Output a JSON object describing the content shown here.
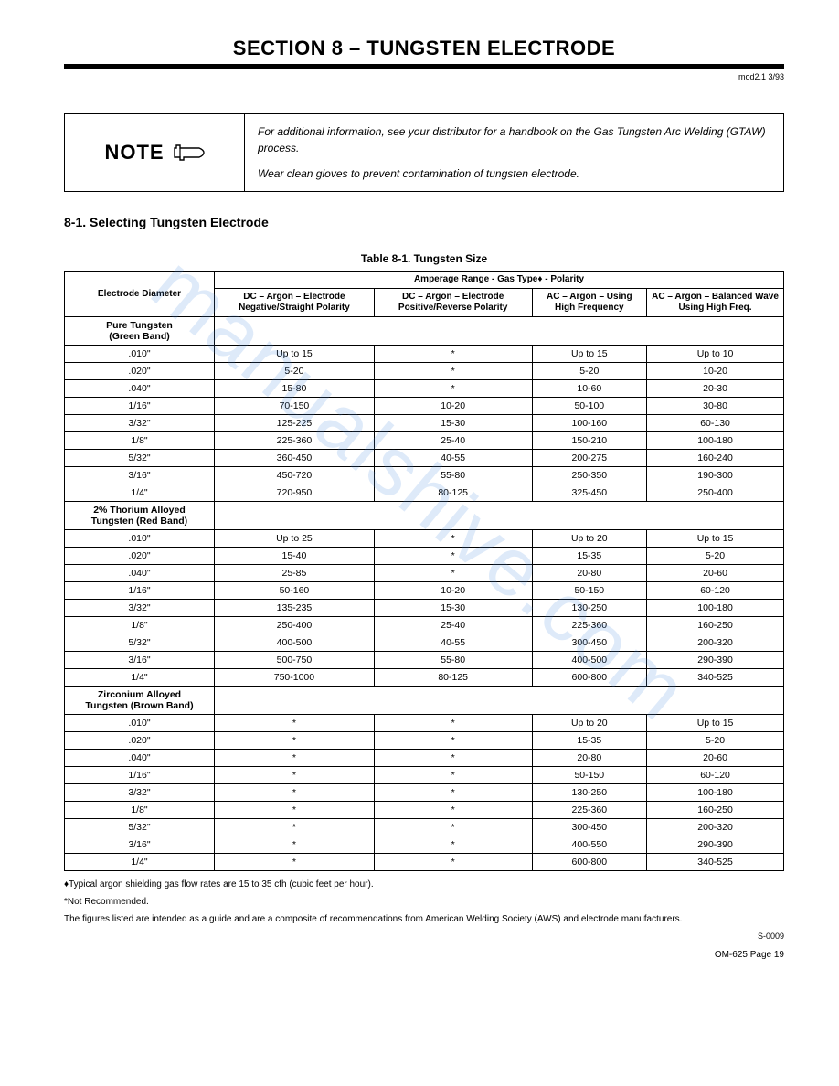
{
  "header": {
    "title": "SECTION 8 – TUNGSTEN ELECTRODE",
    "revision": "mod2.1 3/93"
  },
  "note": {
    "label": "NOTE",
    "line1": "For additional information, see your distributor for a handbook on the Gas Tungsten Arc Welding (GTAW) process.",
    "line2": "Wear clean gloves to prevent contamination of tungsten electrode."
  },
  "subsection": "8-1.   Selecting Tungsten Electrode",
  "table": {
    "caption": "Table 8-1. Tungsten Size",
    "span_header": "Amperage Range - Gas Type♦ - Polarity",
    "columns": [
      "Electrode Diameter",
      "DC – Argon – Electrode Negative/Straight Polarity",
      "DC – Argon – Electrode Positive/Reverse Polarity",
      "AC – Argon – Using High Frequency",
      "AC – Argon – Balanced Wave Using High Freq."
    ],
    "groups": [
      {
        "label": "Pure Tungsten<br>(Green Band)",
        "rows": [
          [
            ".010\"",
            "Up to 15",
            "*",
            "Up to 15",
            "Up to 10"
          ],
          [
            ".020\"",
            "5-20",
            "*",
            "5-20",
            "10-20"
          ],
          [
            ".040\"",
            "15-80",
            "*",
            "10-60",
            "20-30"
          ],
          [
            "1/16\"",
            "70-150",
            "10-20",
            "50-100",
            "30-80"
          ],
          [
            "3/32\"",
            "125-225",
            "15-30",
            "100-160",
            "60-130"
          ],
          [
            "1/8\"",
            "225-360",
            "25-40",
            "150-210",
            "100-180"
          ],
          [
            "5/32\"",
            "360-450",
            "40-55",
            "200-275",
            "160-240"
          ],
          [
            "3/16\"",
            "450-720",
            "55-80",
            "250-350",
            "190-300"
          ],
          [
            "1/4\"",
            "720-950",
            "80-125",
            "325-450",
            "250-400"
          ]
        ]
      },
      {
        "label": "2% Thorium Alloyed<br>Tungsten (Red Band)",
        "rows": [
          [
            ".010\"",
            "Up to 25",
            "*",
            "Up to 20",
            "Up to 15"
          ],
          [
            ".020\"",
            "15-40",
            "*",
            "15-35",
            "5-20"
          ],
          [
            ".040\"",
            "25-85",
            "*",
            "20-80",
            "20-60"
          ],
          [
            "1/16\"",
            "50-160",
            "10-20",
            "50-150",
            "60-120"
          ],
          [
            "3/32\"",
            "135-235",
            "15-30",
            "130-250",
            "100-180"
          ],
          [
            "1/8\"",
            "250-400",
            "25-40",
            "225-360",
            "160-250"
          ],
          [
            "5/32\"",
            "400-500",
            "40-55",
            "300-450",
            "200-320"
          ],
          [
            "3/16\"",
            "500-750",
            "55-80",
            "400-500",
            "290-390"
          ],
          [
            "1/4\"",
            "750-1000",
            "80-125",
            "600-800",
            "340-525"
          ]
        ]
      },
      {
        "label": "Zirconium Alloyed<br>Tungsten (Brown Band)",
        "rows": [
          [
            ".010\"",
            "*",
            "*",
            "Up to 20",
            "Up to 15"
          ],
          [
            ".020\"",
            "*",
            "*",
            "15-35",
            "5-20"
          ],
          [
            ".040\"",
            "*",
            "*",
            "20-80",
            "20-60"
          ],
          [
            "1/16\"",
            "*",
            "*",
            "50-150",
            "60-120"
          ],
          [
            "3/32\"",
            "*",
            "*",
            "130-250",
            "100-180"
          ],
          [
            "1/8\"",
            "*",
            "*",
            "225-360",
            "160-250"
          ],
          [
            "5/32\"",
            "*",
            "*",
            "300-450",
            "200-320"
          ],
          [
            "3/16\"",
            "*",
            "*",
            "400-550",
            "290-390"
          ],
          [
            "1/4\"",
            "*",
            "*",
            "600-800",
            "340-525"
          ]
        ]
      }
    ]
  },
  "footnotes": {
    "f1": "♦Typical argon shielding gas flow rates are 15 to 35 cfh (cubic feet per hour).",
    "f2": "*Not Recommended.",
    "f3": "The figures listed are intended as a guide and are a composite of recommendations from American Welding Society (AWS) and electrode manufacturers.",
    "code": "S-0009"
  },
  "footer": "OM-625 Page 19",
  "watermark": "manualshive.com"
}
